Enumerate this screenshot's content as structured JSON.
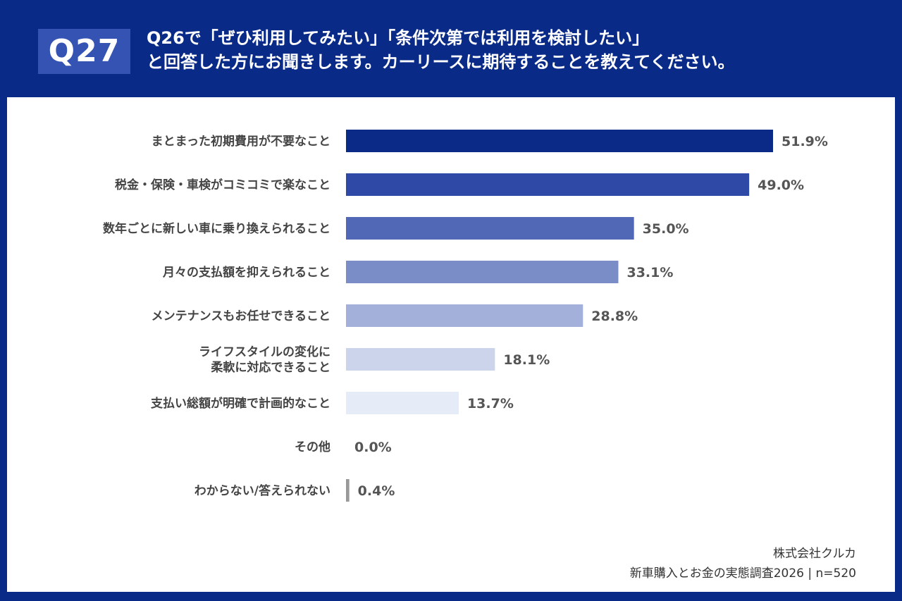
{
  "header": {
    "badge": "Q27",
    "title_line1": "Q26で「ぜひ利用してみたい」「条件次第では利用を検討したい」",
    "title_line2": "と回答した方にお聞きします。カーリースに期待することを教えてください。"
  },
  "chart_data": {
    "type": "bar",
    "orientation": "horizontal",
    "categories": [
      [
        "まとまった初期費用が不要なこと"
      ],
      [
        "税金・保険・車検がコミコミで楽なこと"
      ],
      [
        "数年ごとに新しい車に乗り換えられること"
      ],
      [
        "月々の支払額を抑えられること"
      ],
      [
        "メンテナンスもお任せできること"
      ],
      [
        "ライフスタイルの変化に",
        "柔軟に対応できること"
      ],
      [
        "支払い総額が明確で計画的なこと"
      ],
      [
        "その他"
      ],
      [
        "わからない/答えられない"
      ]
    ],
    "values": [
      51.9,
      49.0,
      35.0,
      33.1,
      28.8,
      18.1,
      13.7,
      0.0,
      0.4
    ],
    "value_labels": [
      "51.9%",
      "49.0%",
      "35.0%",
      "33.1%",
      "28.8%",
      "18.1%",
      "13.7%",
      "0.0%",
      "0.4%"
    ],
    "bar_colors": [
      "#0b2a88",
      "#2e4aa6",
      "#5068b5",
      "#7a8dc6",
      "#a3b0da",
      "#ccd4ec",
      "#e6ecf7",
      "#e6ecf7",
      "#999999"
    ],
    "xlim": [
      0,
      100
    ],
    "unit": "%"
  },
  "footer": {
    "company": "株式会社クルカ",
    "survey": "新車購入とお金の実態調査2026 | n=520"
  }
}
